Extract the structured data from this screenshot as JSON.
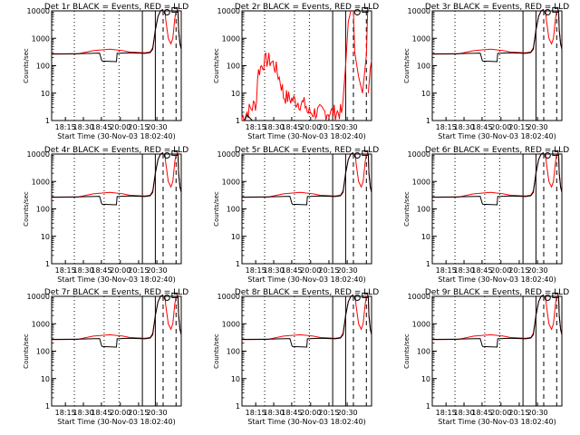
{
  "x_tick_labels": [
    "18:15",
    "18:30",
    "18:45",
    "20:00",
    "20:15",
    "20:30"
  ],
  "y_tick_labels": [
    "1",
    "10",
    "100",
    "1000",
    "10000"
  ],
  "xlabel": "Start Time (30-Nov-03 18:02:40)",
  "ylabel": "Counts/sec",
  "colors": {
    "events": "#000000",
    "lld": "#ff0000"
  },
  "chart_data": [
    {
      "type": "line",
      "title": "Det 1r BLACK = Events, RED = LLD",
      "variant": "A",
      "ylim": [
        1,
        10000
      ],
      "yscale": "log"
    },
    {
      "type": "line",
      "title": "Det 2r BLACK = Events, RED = LLD",
      "variant": "B",
      "ylim": [
        1,
        10000
      ],
      "yscale": "log"
    },
    {
      "type": "line",
      "title": "Det 3r BLACK = Events, RED = LLD",
      "variant": "A",
      "ylim": [
        1,
        10000
      ],
      "yscale": "log"
    },
    {
      "type": "line",
      "title": "Det 4r BLACK = Events, RED = LLD",
      "variant": "A",
      "ylim": [
        1,
        10000
      ],
      "yscale": "log"
    },
    {
      "type": "line",
      "title": "Det 5r BLACK = Events, RED = LLD",
      "variant": "A",
      "ylim": [
        1,
        10000
      ],
      "yscale": "log"
    },
    {
      "type": "line",
      "title": "Det 6r BLACK = Events, RED = LLD",
      "variant": "A",
      "ylim": [
        1,
        10000
      ],
      "yscale": "log"
    },
    {
      "type": "line",
      "title": "Det 7r BLACK = Events, RED = LLD",
      "variant": "A",
      "ylim": [
        1,
        10000
      ],
      "yscale": "log"
    },
    {
      "type": "line",
      "title": "Det 8r BLACK = Events, RED = LLD",
      "variant": "A",
      "ylim": [
        1,
        10000
      ],
      "yscale": "log"
    },
    {
      "type": "line",
      "title": "Det 9r BLACK = Events, RED = LLD",
      "variant": "A",
      "ylim": [
        1,
        10000
      ],
      "yscale": "log"
    }
  ]
}
